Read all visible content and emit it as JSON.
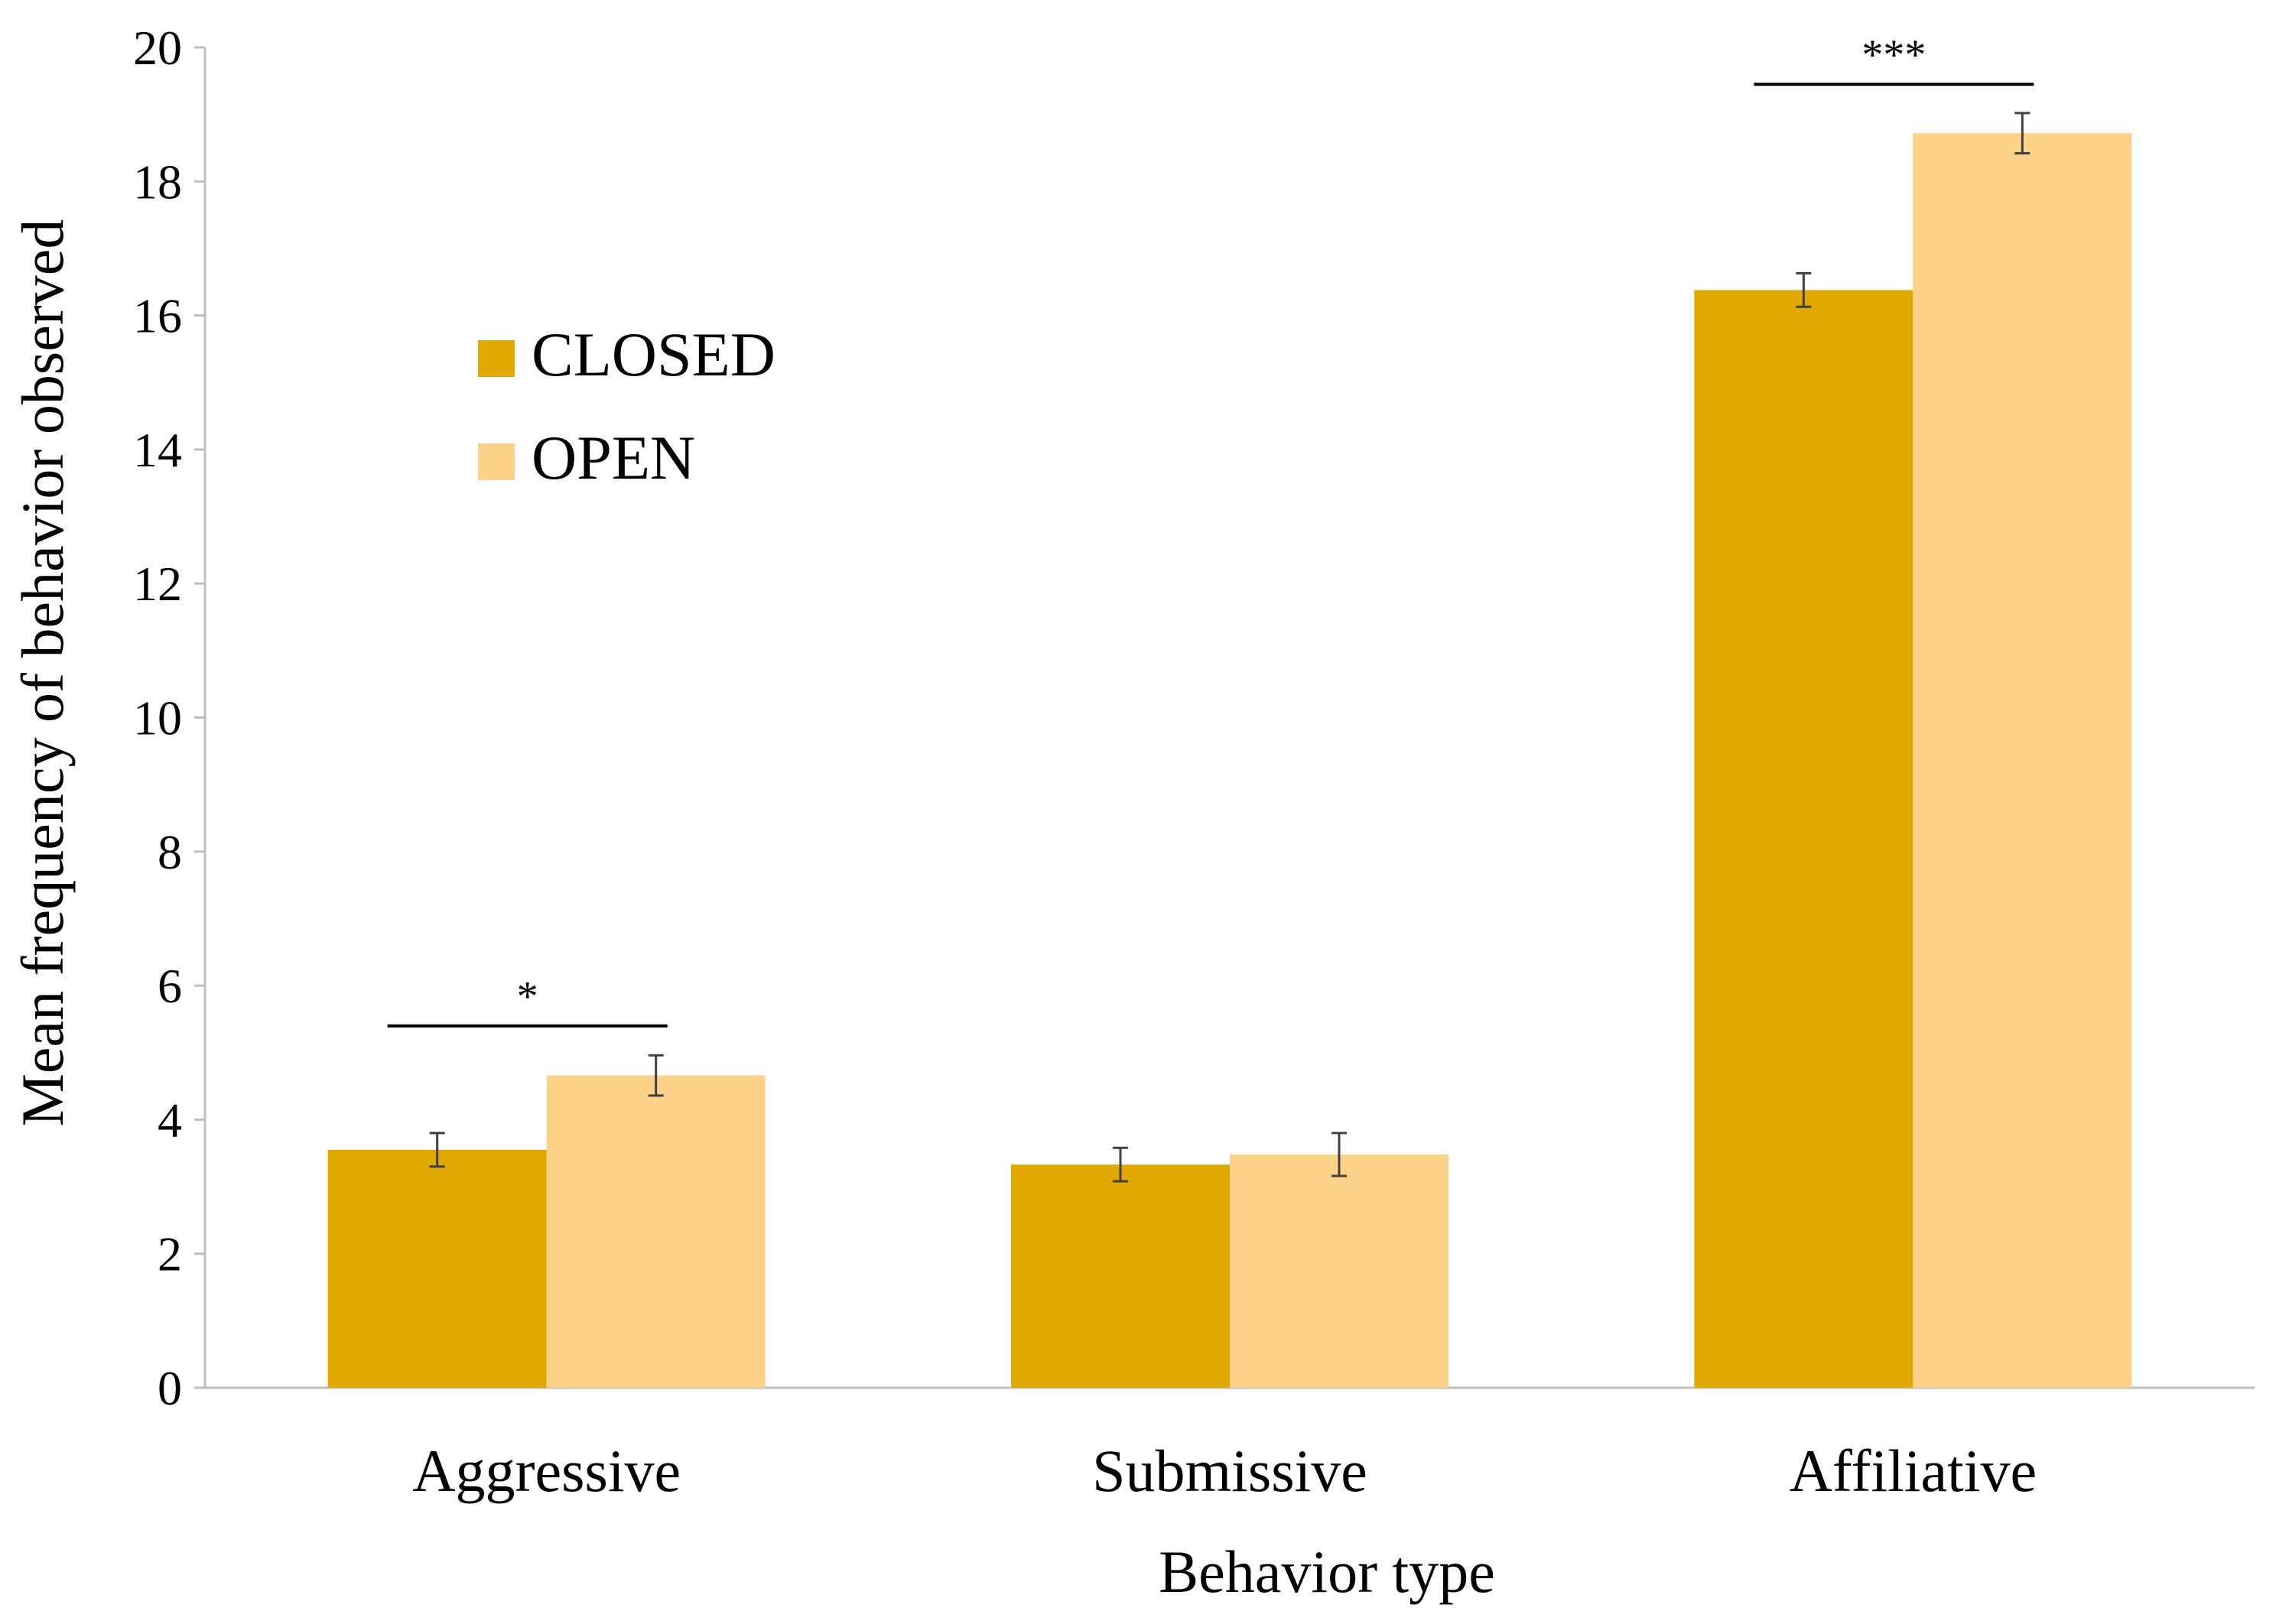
{
  "chart_data": {
    "type": "bar",
    "title": "",
    "xlabel": "Behavior type",
    "ylabel": "Mean frequency of behavior observed",
    "ylim": [
      0,
      20
    ],
    "yticks": [
      0,
      2,
      4,
      6,
      8,
      10,
      12,
      14,
      16,
      18,
      20
    ],
    "categories": [
      "Aggressive",
      "Submissive",
      "Affiliative"
    ],
    "series": [
      {
        "name": "CLOSED",
        "color": "#E0A800",
        "values": [
          3.55,
          3.33,
          16.38
        ],
        "errors": [
          0.25,
          0.25,
          0.25
        ]
      },
      {
        "name": "OPEN",
        "color": "#FCD28A",
        "values": [
          4.66,
          3.48,
          18.72
        ],
        "errors": [
          0.3,
          0.32,
          0.3
        ]
      }
    ],
    "significance": [
      {
        "category_index": 0,
        "label": "*",
        "y": 5.4
      },
      {
        "category_index": 2,
        "label": "***",
        "y": 19.45
      }
    ],
    "grid": false,
    "legend_position": "upper-left"
  }
}
